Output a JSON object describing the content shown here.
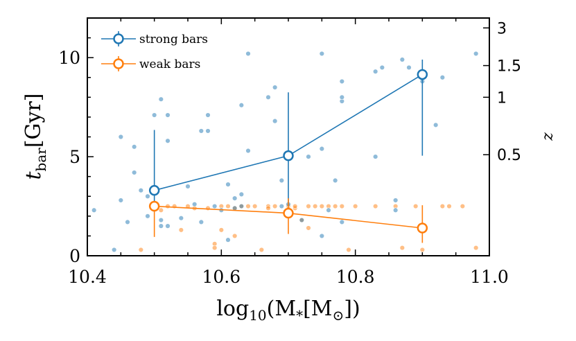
{
  "chart_data": {
    "type": "scatter",
    "xlabel": "log10(M*[M⊙])",
    "ylabel": "t_bar[Gyr]",
    "y2label": "z",
    "xlim": [
      10.4,
      11.0
    ],
    "ylim": [
      0,
      12
    ],
    "xticks": [
      10.4,
      10.6,
      10.8,
      11.0
    ],
    "xtick_labels": [
      "10.4",
      "10.6",
      "10.8",
      "11.0"
    ],
    "yticks": [
      0,
      5,
      10
    ],
    "ytick_labels": [
      "0",
      "5",
      "10"
    ],
    "z_ticks": [
      {
        "label": "3",
        "t": 11.5
      },
      {
        "label": "1.5",
        "t": 9.6
      },
      {
        "label": "1",
        "t": 8.0
      },
      {
        "label": "0.5",
        "t": 5.1
      }
    ],
    "legend": {
      "location": "top-left",
      "entries": [
        {
          "label": "strong bars",
          "color": "#1f77b4"
        },
        {
          "label": "weak bars",
          "color": "#ff7f0e"
        }
      ]
    },
    "series": [
      {
        "name": "strong bars",
        "color": "#1f77b4",
        "binned": {
          "x": [
            10.5,
            10.7,
            10.9
          ],
          "y": [
            3.3,
            5.05,
            9.15
          ],
          "err_low": [
            1.1,
            2.55,
            4.1
          ],
          "err_high": [
            3.05,
            3.2,
            0.75
          ]
        },
        "points": [
          [
            10.41,
            2.3
          ],
          [
            10.44,
            0.3
          ],
          [
            10.45,
            2.8
          ],
          [
            10.45,
            6.0
          ],
          [
            10.46,
            1.7
          ],
          [
            10.47,
            4.2
          ],
          [
            10.47,
            5.5
          ],
          [
            10.48,
            3.3
          ],
          [
            10.49,
            2.0
          ],
          [
            10.49,
            3.0
          ],
          [
            10.5,
            3.4
          ],
          [
            10.5,
            7.1
          ],
          [
            10.51,
            7.9
          ],
          [
            10.51,
            1.8
          ],
          [
            10.51,
            1.5
          ],
          [
            10.52,
            1.5
          ],
          [
            10.52,
            5.8
          ],
          [
            10.52,
            7.1
          ],
          [
            10.54,
            1.9
          ],
          [
            10.55,
            3.5
          ],
          [
            10.56,
            2.6
          ],
          [
            10.57,
            6.3
          ],
          [
            10.57,
            1.7
          ],
          [
            10.58,
            7.1
          ],
          [
            10.58,
            6.3
          ],
          [
            10.59,
            2.5
          ],
          [
            10.6,
            2.3
          ],
          [
            10.61,
            0.8
          ],
          [
            10.61,
            3.6
          ],
          [
            10.62,
            2.4
          ],
          [
            10.62,
            2.9
          ],
          [
            10.63,
            3.1
          ],
          [
            10.63,
            2.5
          ],
          [
            10.63,
            7.6
          ],
          [
            10.64,
            5.3
          ],
          [
            10.64,
            10.2
          ],
          [
            10.67,
            8.0
          ],
          [
            10.68,
            6.8
          ],
          [
            10.68,
            8.5
          ],
          [
            10.69,
            3.8
          ],
          [
            10.69,
            2.5
          ],
          [
            10.7,
            2.6
          ],
          [
            10.72,
            1.8
          ],
          [
            10.73,
            5.0
          ],
          [
            10.75,
            5.4
          ],
          [
            10.75,
            1.0
          ],
          [
            10.75,
            10.2
          ],
          [
            10.76,
            2.3
          ],
          [
            10.77,
            3.8
          ],
          [
            10.78,
            7.8
          ],
          [
            10.78,
            8.0
          ],
          [
            10.78,
            8.8
          ],
          [
            10.78,
            1.7
          ],
          [
            10.83,
            5.0
          ],
          [
            10.83,
            9.3
          ],
          [
            10.84,
            9.5
          ],
          [
            10.86,
            2.8
          ],
          [
            10.86,
            2.3
          ],
          [
            10.87,
            9.9
          ],
          [
            10.88,
            9.5
          ],
          [
            10.9,
            8.8
          ],
          [
            10.92,
            6.6
          ],
          [
            10.93,
            9.0
          ],
          [
            10.98,
            10.2
          ]
        ]
      },
      {
        "name": "weak bars",
        "color": "#ff7f0e",
        "binned": {
          "x": [
            10.5,
            10.7,
            10.9
          ],
          "y": [
            2.5,
            2.15,
            1.4
          ],
          "err_low": [
            1.55,
            1.05,
            0.75
          ],
          "err_high": [
            0.25,
            0.75,
            1.15
          ]
        },
        "points": [
          [
            10.48,
            0.3
          ],
          [
            10.5,
            2.5
          ],
          [
            10.51,
            2.3
          ],
          [
            10.52,
            2.5
          ],
          [
            10.53,
            2.5
          ],
          [
            10.54,
            1.3
          ],
          [
            10.55,
            2.5
          ],
          [
            10.56,
            2.4
          ],
          [
            10.58,
            2.4
          ],
          [
            10.59,
            0.6
          ],
          [
            10.59,
            0.4
          ],
          [
            10.6,
            1.3
          ],
          [
            10.6,
            2.5
          ],
          [
            10.61,
            2.5
          ],
          [
            10.62,
            1.0
          ],
          [
            10.62,
            2.4
          ],
          [
            10.63,
            2.5
          ],
          [
            10.64,
            2.5
          ],
          [
            10.65,
            2.5
          ],
          [
            10.66,
            0.3
          ],
          [
            10.67,
            2.5
          ],
          [
            10.67,
            2.4
          ],
          [
            10.68,
            2.5
          ],
          [
            10.7,
            2.5
          ],
          [
            10.71,
            2.4
          ],
          [
            10.71,
            2.5
          ],
          [
            10.72,
            1.8
          ],
          [
            10.73,
            2.5
          ],
          [
            10.73,
            1.4
          ],
          [
            10.74,
            2.5
          ],
          [
            10.75,
            2.5
          ],
          [
            10.76,
            2.5
          ],
          [
            10.77,
            2.5
          ],
          [
            10.78,
            2.5
          ],
          [
            10.79,
            0.3
          ],
          [
            10.8,
            2.5
          ],
          [
            10.83,
            2.5
          ],
          [
            10.86,
            2.5
          ],
          [
            10.87,
            0.4
          ],
          [
            10.89,
            2.5
          ],
          [
            10.9,
            0.3
          ],
          [
            10.93,
            2.5
          ],
          [
            10.94,
            2.5
          ],
          [
            10.96,
            2.5
          ],
          [
            10.98,
            0.4
          ]
        ]
      }
    ]
  }
}
